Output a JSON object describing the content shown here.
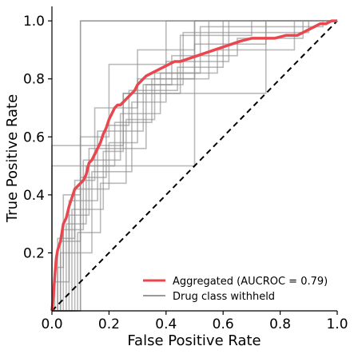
{
  "chart_data": {
    "type": "line",
    "title": "",
    "xlabel": "False Positive Rate",
    "ylabel": "True Positive Rate",
    "xlim": [
      0,
      1
    ],
    "ylim": [
      0,
      1.05
    ],
    "xticks": [
      "0.0",
      "0.2",
      "0.4",
      "0.6",
      "0.8",
      "1.0"
    ],
    "yticks": [
      "0.2",
      "0.4",
      "0.6",
      "0.8",
      "1.0"
    ],
    "grid": false,
    "legend_position": "lower-right",
    "colors": {
      "aggregated": "#e8474f",
      "withheld": "#8c8c8c",
      "diagonal": "#000000"
    },
    "series": [
      {
        "name": "Aggregated (AUCROC = 0.79)",
        "x": [
          0,
          0.005,
          0.01,
          0.015,
          0.02,
          0.03,
          0.04,
          0.05,
          0.06,
          0.07,
          0.08,
          0.09,
          0.1,
          0.11,
          0.12,
          0.13,
          0.14,
          0.15,
          0.16,
          0.17,
          0.18,
          0.19,
          0.2,
          0.21,
          0.22,
          0.23,
          0.24,
          0.25,
          0.27,
          0.29,
          0.3,
          0.32,
          0.33,
          0.35,
          0.37,
          0.39,
          0.41,
          0.43,
          0.45,
          0.48,
          0.51,
          0.54,
          0.57,
          0.6,
          0.63,
          0.66,
          0.7,
          0.74,
          0.78,
          0.82,
          0.86,
          0.88,
          0.9,
          0.92,
          0.94,
          0.96,
          0.98,
          1.0
        ],
        "y": [
          0,
          0.05,
          0.12,
          0.18,
          0.21,
          0.24,
          0.3,
          0.32,
          0.36,
          0.39,
          0.42,
          0.43,
          0.44,
          0.45,
          0.47,
          0.51,
          0.52,
          0.54,
          0.56,
          0.58,
          0.61,
          0.63,
          0.66,
          0.68,
          0.7,
          0.71,
          0.71,
          0.72,
          0.74,
          0.76,
          0.78,
          0.8,
          0.81,
          0.82,
          0.83,
          0.84,
          0.85,
          0.86,
          0.86,
          0.87,
          0.88,
          0.89,
          0.9,
          0.91,
          0.92,
          0.93,
          0.94,
          0.94,
          0.94,
          0.95,
          0.95,
          0.96,
          0.97,
          0.98,
          0.99,
          0.99,
          1.0,
          1.0
        ]
      },
      {
        "name": "Drug class withheld",
        "x": [
          0,
          0.1,
          0.1,
          0.6,
          0.6,
          1.0
        ],
        "y": [
          0,
          0,
          1.0,
          1.0,
          1.0,
          1.0
        ]
      }
    ],
    "withheld_curves": [
      {
        "x": [
          0,
          0.1,
          0.1,
          1.0
        ],
        "y": [
          0,
          0,
          1.0,
          1.0
        ]
      },
      {
        "x": [
          0,
          0.02,
          0.02,
          0.08,
          0.08,
          0.15,
          0.15,
          0.3,
          0.3,
          0.5,
          0.5,
          1.0
        ],
        "y": [
          0,
          0,
          0.25,
          0.25,
          0.45,
          0.45,
          0.7,
          0.7,
          0.9,
          0.9,
          1.0,
          1.0
        ]
      },
      {
        "x": [
          0,
          0.05,
          0.05,
          0.12,
          0.12,
          0.22,
          0.22,
          0.35,
          0.35,
          0.55,
          0.55,
          1.0
        ],
        "y": [
          0,
          0,
          0.3,
          0.3,
          0.5,
          0.5,
          0.65,
          0.65,
          0.8,
          0.8,
          1.0,
          1.0
        ]
      },
      {
        "x": [
          0,
          0.02,
          0.02,
          0.04,
          0.04,
          0.1,
          0.1,
          0.2,
          0.2,
          0.4,
          0.4,
          1.0
        ],
        "y": [
          0,
          0,
          0.15,
          0.15,
          0.4,
          0.4,
          0.6,
          0.6,
          0.85,
          0.85,
          1.0,
          1.0
        ]
      },
      {
        "x": [
          0,
          0.07,
          0.07,
          0.18,
          0.18,
          0.25,
          0.25,
          0.45,
          0.45,
          0.7,
          0.7,
          1.0
        ],
        "y": [
          0,
          0,
          0.35,
          0.35,
          0.55,
          0.55,
          0.75,
          0.75,
          0.95,
          0.95,
          1.0,
          1.0
        ]
      },
      {
        "x": [
          0,
          0.03,
          0.03,
          0.14,
          0.14,
          0.28,
          0.28,
          0.4,
          0.4,
          0.62,
          0.62,
          1.0
        ],
        "y": [
          0,
          0,
          0.2,
          0.2,
          0.48,
          0.48,
          0.72,
          0.72,
          0.86,
          0.86,
          1.0,
          1.0
        ]
      },
      {
        "x": [
          0,
          0.01,
          0.01,
          0.06,
          0.06,
          0.16,
          0.16,
          0.32,
          0.32,
          0.46,
          0.46,
          0.9,
          0.9,
          1.0
        ],
        "y": [
          0,
          0,
          0.1,
          0.1,
          0.38,
          0.38,
          0.62,
          0.62,
          0.78,
          0.78,
          0.96,
          0.96,
          1.0,
          1.0
        ]
      },
      {
        "x": [
          0,
          0.08,
          0.08,
          0.2,
          0.2,
          0.3,
          0.3,
          0.5,
          0.5,
          0.75,
          0.75,
          1.0
        ],
        "y": [
          0,
          0,
          0.42,
          0.42,
          0.58,
          0.58,
          0.8,
          0.8,
          0.92,
          0.92,
          1.0,
          1.0
        ]
      },
      {
        "x": [
          0,
          0.04,
          0.04,
          0.11,
          0.11,
          0.24,
          0.24,
          0.38,
          0.38,
          0.58,
          0.58,
          0.85,
          0.85,
          1.0
        ],
        "y": [
          0,
          0,
          0.28,
          0.28,
          0.52,
          0.52,
          0.68,
          0.68,
          0.82,
          0.82,
          0.9,
          0.9,
          1.0,
          1.0
        ]
      },
      {
        "x": [
          0,
          0.0,
          0.0,
          0.5,
          0.5,
          1.0
        ],
        "y": [
          0,
          0,
          0.5,
          0.5,
          1.0,
          1.0
        ]
      },
      {
        "x": [
          0,
          0.0,
          0.0,
          0.25,
          0.25,
          0.75,
          0.75,
          1.0
        ],
        "y": [
          0,
          0,
          0.57,
          0.57,
          0.75,
          0.75,
          1.0,
          1.0
        ]
      },
      {
        "x": [
          0,
          0.06,
          0.06,
          0.13,
          0.13,
          0.33,
          0.33,
          0.42,
          0.42,
          0.65,
          0.65,
          0.88,
          0.88,
          1.0
        ],
        "y": [
          0,
          0,
          0.33,
          0.33,
          0.56,
          0.56,
          0.78,
          0.78,
          0.88,
          0.88,
          0.94,
          0.94,
          1.0,
          1.0
        ]
      },
      {
        "x": [
          0,
          0.09,
          0.09,
          0.17,
          0.17,
          0.26,
          0.26,
          0.36,
          0.36,
          0.52,
          0.52,
          0.95,
          0.95,
          1.0
        ],
        "y": [
          0,
          0,
          0.27,
          0.27,
          0.44,
          0.44,
          0.66,
          0.66,
          0.82,
          0.82,
          0.98,
          0.98,
          1.0,
          1.0
        ]
      },
      {
        "x": [
          0,
          0.03,
          0.03,
          0.1,
          0.1,
          0.19,
          0.19,
          0.27,
          0.27,
          0.44,
          0.44,
          0.6,
          0.6,
          1.0
        ],
        "y": [
          0,
          0,
          0.24,
          0.24,
          0.46,
          0.46,
          0.64,
          0.64,
          0.76,
          0.76,
          0.84,
          0.84,
          1.0,
          1.0
        ]
      }
    ]
  }
}
